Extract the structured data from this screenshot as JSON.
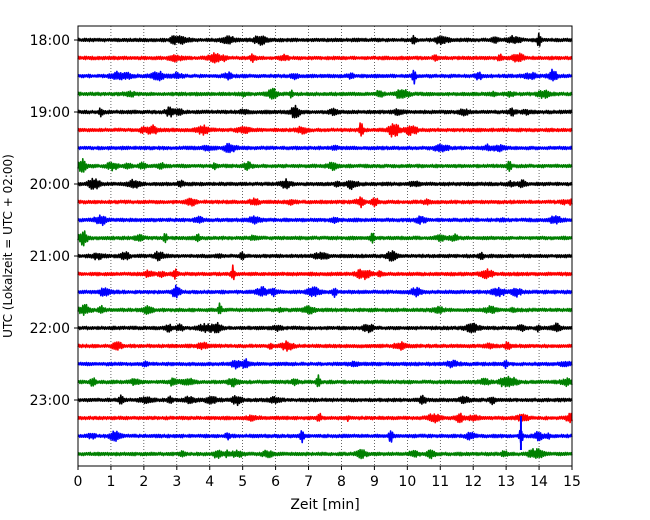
{
  "chart_data": {
    "type": "line",
    "xlabel": "Zeit  [min]",
    "ylabel": "UTC (Lokalzeit = UTC + 02:00)",
    "xlim": [
      0,
      15
    ],
    "x_ticks": [
      0,
      1,
      2,
      3,
      4,
      5,
      6,
      7,
      8,
      9,
      10,
      11,
      12,
      13,
      14,
      15
    ],
    "y_tick_labels": [
      "18:00",
      "19:00",
      "20:00",
      "21:00",
      "22:00",
      "23:00"
    ],
    "grid": "vertical dotted lines at each minute",
    "trace_colors": [
      "#000000",
      "#ff0000",
      "#0000ff",
      "#008000"
    ],
    "trace_start_times": [
      "18:00",
      "18:15",
      "18:30",
      "18:45",
      "19:00",
      "19:15",
      "19:30",
      "19:45",
      "20:00",
      "20:15",
      "20:30",
      "20:45",
      "21:00",
      "21:15",
      "21:30",
      "21:45",
      "22:00",
      "22:15",
      "22:30",
      "22:45",
      "23:00",
      "23:15",
      "23:30",
      "23:45"
    ],
    "notable_events_min": [
      {
        "trace": "18:00",
        "t": 14.0
      },
      {
        "trace": "18:30",
        "t": 10.2
      },
      {
        "trace": "19:15",
        "t": 8.6
      },
      {
        "trace": "19:45",
        "t": 13.1
      },
      {
        "trace": "21:15",
        "t": 4.7
      },
      {
        "trace": "21:45",
        "t": 4.3
      },
      {
        "trace": "22:45",
        "t": 7.3
      },
      {
        "trace": "23:30",
        "t": 13.45
      },
      {
        "trace": "23:30",
        "t": 6.8
      },
      {
        "trace": "23:30",
        "t": 9.5
      }
    ]
  }
}
